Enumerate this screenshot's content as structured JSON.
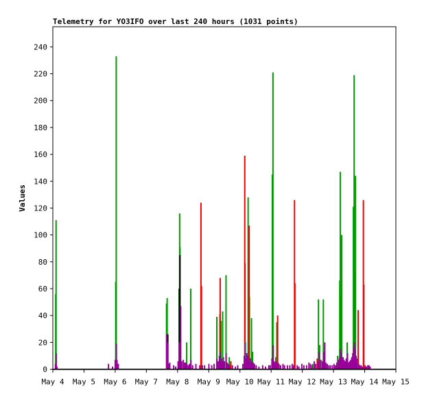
{
  "chart_data": {
    "type": "bar",
    "title": "Telemetry for YO3IFO over last 240 hours (1031 points)",
    "xlabel": "",
    "ylabel": "Values",
    "xlim": [
      0,
      264
    ],
    "ylim": [
      0,
      255
    ],
    "grid": false,
    "legend": "none",
    "x_ticks": [
      {
        "pos": 0,
        "label": "May 4"
      },
      {
        "pos": 24,
        "label": "May 5"
      },
      {
        "pos": 48,
        "label": "May 6"
      },
      {
        "pos": 72,
        "label": "May 7"
      },
      {
        "pos": 96,
        "label": "May 8"
      },
      {
        "pos": 120,
        "label": "May 9"
      },
      {
        "pos": 144,
        "label": "May 10"
      },
      {
        "pos": 168,
        "label": "May 11"
      },
      {
        "pos": 192,
        "label": "May 12"
      },
      {
        "pos": 216,
        "label": "May 13"
      },
      {
        "pos": 240,
        "label": "May 14"
      },
      {
        "pos": 264,
        "label": "May 15"
      }
    ],
    "y_ticks": [
      0,
      20,
      40,
      60,
      80,
      100,
      120,
      140,
      160,
      180,
      200,
      220,
      240
    ],
    "series": [
      {
        "color": "#009900",
        "points": [
          [
            2.2,
            56
          ],
          [
            2.5,
            111
          ],
          [
            48.4,
            65
          ],
          [
            48.8,
            233
          ],
          [
            87.5,
            49
          ],
          [
            88.0,
            53
          ],
          [
            97.2,
            60
          ],
          [
            97.6,
            116
          ],
          [
            97.9,
            91
          ],
          [
            103.0,
            20
          ],
          [
            106.1,
            60
          ],
          [
            126.2,
            39
          ],
          [
            128.6,
            41
          ],
          [
            129.4,
            36
          ],
          [
            130.7,
            43
          ],
          [
            133.3,
            70
          ],
          [
            135.8,
            9
          ],
          [
            150.3,
            128
          ],
          [
            150.6,
            69
          ],
          [
            151.3,
            54
          ],
          [
            152.9,
            38
          ],
          [
            153.7,
            13
          ],
          [
            168.9,
            145
          ],
          [
            169.4,
            221
          ],
          [
            171.6,
            9
          ],
          [
            172.4,
            35
          ],
          [
            200.0,
            4
          ],
          [
            204.4,
            52
          ],
          [
            205.3,
            18
          ],
          [
            208.2,
            52
          ],
          [
            220.8,
            66
          ],
          [
            221.2,
            147
          ],
          [
            221.6,
            55
          ],
          [
            222.3,
            100
          ],
          [
            231.3,
            121
          ],
          [
            231.9,
            219
          ],
          [
            232.4,
            73
          ],
          [
            232.9,
            144
          ],
          [
            226.5,
            20
          ],
          [
            219.2,
            10
          ]
        ]
      },
      {
        "color": "#ee0000",
        "points": [
          [
            114.0,
            124
          ],
          [
            114.4,
            62
          ],
          [
            128.8,
            68
          ],
          [
            147.7,
            159
          ],
          [
            147.9,
            79
          ],
          [
            151.1,
            107
          ],
          [
            173.0,
            40
          ],
          [
            186.0,
            126
          ],
          [
            186.3,
            64
          ],
          [
            235.0,
            44
          ],
          [
            239.0,
            126
          ],
          [
            239.3,
            63
          ],
          [
            203.5,
            8
          ],
          [
            137.0,
            6
          ]
        ]
      },
      {
        "color": "#000000",
        "points": [
          [
            97.8,
            85
          ],
          [
            97.4,
            60
          ],
          [
            88.5,
            26
          ]
        ]
      },
      {
        "color": "#0070c0",
        "points": [
          [
            148.2,
            20
          ],
          [
            152.2,
            8
          ],
          [
            224.5,
            5
          ]
        ]
      },
      {
        "color": "#990099",
        "points": [
          [
            2.0,
            4
          ],
          [
            2.6,
            12
          ],
          [
            3.2,
            2
          ],
          [
            42.8,
            4
          ],
          [
            46.0,
            2
          ],
          [
            48.0,
            7
          ],
          [
            48.9,
            19
          ],
          [
            49.4,
            7
          ],
          [
            50.4,
            4
          ],
          [
            87.6,
            26
          ],
          [
            88.3,
            20
          ],
          [
            89.2,
            4
          ],
          [
            90.0,
            5
          ],
          [
            93.0,
            3
          ],
          [
            94.5,
            2
          ],
          [
            96.4,
            6
          ],
          [
            97.3,
            20
          ],
          [
            98.4,
            47
          ],
          [
            99.2,
            6
          ],
          [
            100.4,
            7
          ],
          [
            101.4,
            5
          ],
          [
            102.3,
            5
          ],
          [
            103.1,
            4
          ],
          [
            104.2,
            3
          ],
          [
            105.1,
            4
          ],
          [
            106.3,
            7
          ],
          [
            107.6,
            3
          ],
          [
            110.1,
            4
          ],
          [
            113.1,
            3
          ],
          [
            115.1,
            3
          ],
          [
            116.8,
            3
          ],
          [
            120.1,
            4
          ],
          [
            122.3,
            3
          ],
          [
            124.1,
            4
          ],
          [
            126.3,
            8
          ],
          [
            127.2,
            6
          ],
          [
            128.2,
            10
          ],
          [
            128.9,
            13
          ],
          [
            129.6,
            8
          ],
          [
            130.4,
            6
          ],
          [
            131.2,
            9
          ],
          [
            132.1,
            6
          ],
          [
            133.4,
            12
          ],
          [
            134.2,
            5
          ],
          [
            135.1,
            4
          ],
          [
            136.1,
            3
          ],
          [
            138.2,
            3
          ],
          [
            140.5,
            2
          ],
          [
            142.3,
            3
          ],
          [
            146.2,
            4
          ],
          [
            147.3,
            10
          ],
          [
            148.4,
            8
          ],
          [
            149.2,
            12
          ],
          [
            150.1,
            10
          ],
          [
            150.9,
            7
          ],
          [
            151.7,
            8
          ],
          [
            152.5,
            5
          ],
          [
            153.3,
            6
          ],
          [
            154.3,
            5
          ],
          [
            155.2,
            4
          ],
          [
            156.5,
            3
          ],
          [
            158.6,
            2
          ],
          [
            161.5,
            3
          ],
          [
            163.7,
            2
          ],
          [
            166.2,
            3
          ],
          [
            167.3,
            3
          ],
          [
            168.6,
            8
          ],
          [
            169.6,
            18
          ],
          [
            170.3,
            6
          ],
          [
            171.1,
            5
          ],
          [
            172.1,
            6
          ],
          [
            173.3,
            5
          ],
          [
            174.1,
            4
          ],
          [
            175.3,
            3
          ],
          [
            177.1,
            4
          ],
          [
            178.3,
            3
          ],
          [
            180.5,
            3
          ],
          [
            182.4,
            3
          ],
          [
            184.2,
            4
          ],
          [
            185.3,
            3
          ],
          [
            188.1,
            3
          ],
          [
            189.3,
            2
          ],
          [
            191.6,
            4
          ],
          [
            193.2,
            3
          ],
          [
            195.3,
            3
          ],
          [
            197.1,
            5
          ],
          [
            198.3,
            4
          ],
          [
            199.5,
            3
          ],
          [
            201.2,
            6
          ],
          [
            202.3,
            4
          ],
          [
            204.1,
            6
          ],
          [
            205.1,
            13
          ],
          [
            206.3,
            7
          ],
          [
            207.5,
            6
          ],
          [
            208.4,
            13
          ],
          [
            209.3,
            20
          ],
          [
            210.1,
            5
          ],
          [
            211.2,
            4
          ],
          [
            212.4,
            3
          ],
          [
            213.6,
            3
          ],
          [
            215.1,
            3
          ],
          [
            216.4,
            4
          ],
          [
            217.5,
            3
          ],
          [
            218.6,
            5
          ],
          [
            219.8,
            7
          ],
          [
            220.6,
            9
          ],
          [
            221.4,
            15
          ],
          [
            222.0,
            12
          ],
          [
            222.6,
            8
          ],
          [
            223.3,
            9
          ],
          [
            224.1,
            7
          ],
          [
            225.0,
            6
          ],
          [
            225.8,
            8
          ],
          [
            226.8,
            12
          ],
          [
            227.6,
            5
          ],
          [
            228.4,
            6
          ],
          [
            229.2,
            7
          ],
          [
            230.0,
            9
          ],
          [
            230.8,
            12
          ],
          [
            231.5,
            17
          ],
          [
            232.1,
            20
          ],
          [
            232.7,
            15
          ],
          [
            233.4,
            10
          ],
          [
            234.0,
            8
          ],
          [
            235.4,
            4
          ],
          [
            236.2,
            3
          ],
          [
            237.2,
            3
          ],
          [
            238.1,
            2
          ],
          [
            240.3,
            3
          ],
          [
            241.3,
            2
          ],
          [
            242.4,
            3
          ],
          [
            243.3,
            3
          ],
          [
            244.2,
            2
          ]
        ]
      }
    ]
  }
}
